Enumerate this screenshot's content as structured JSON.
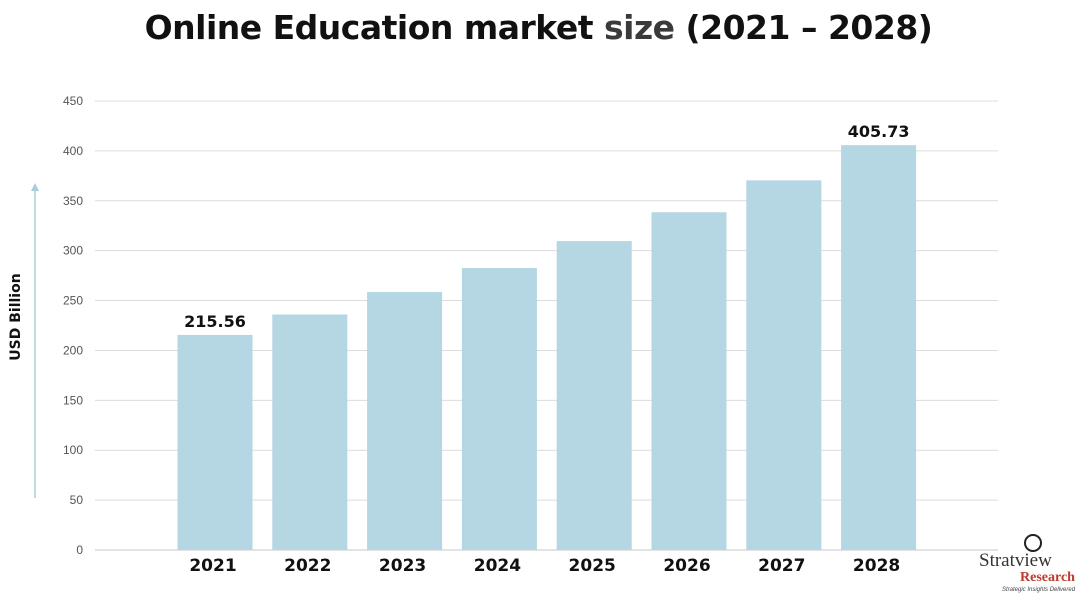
{
  "chart_data": {
    "type": "bar",
    "title": {
      "main": "Online Education market",
      "accent": "size",
      "suffix": "(2021 – 2028)"
    },
    "ylabel": "USD Billion",
    "xlabel": "",
    "ylim": [
      0,
      450
    ],
    "yticks": [
      0,
      50,
      100,
      150,
      200,
      250,
      300,
      350,
      400,
      450
    ],
    "grid": true,
    "categories": [
      "2021",
      "2022",
      "2023",
      "2024",
      "2025",
      "2026",
      "2027",
      "2028"
    ],
    "values": [
      215.56,
      236,
      258.5,
      282.6,
      309.6,
      338.5,
      370.5,
      405.73
    ],
    "data_labels": {
      "0": "215.56",
      "7": "405.73"
    },
    "colors": {
      "bar": "#b5d6e3",
      "grid": "#dcdcdc",
      "axis_arrow": "#a8cdd9"
    }
  },
  "logo": {
    "name_part1": "Strat",
    "name_part2": "view",
    "sub": "Research",
    "tagline": "Strategic Insights Delivered",
    "tm": "TM"
  }
}
